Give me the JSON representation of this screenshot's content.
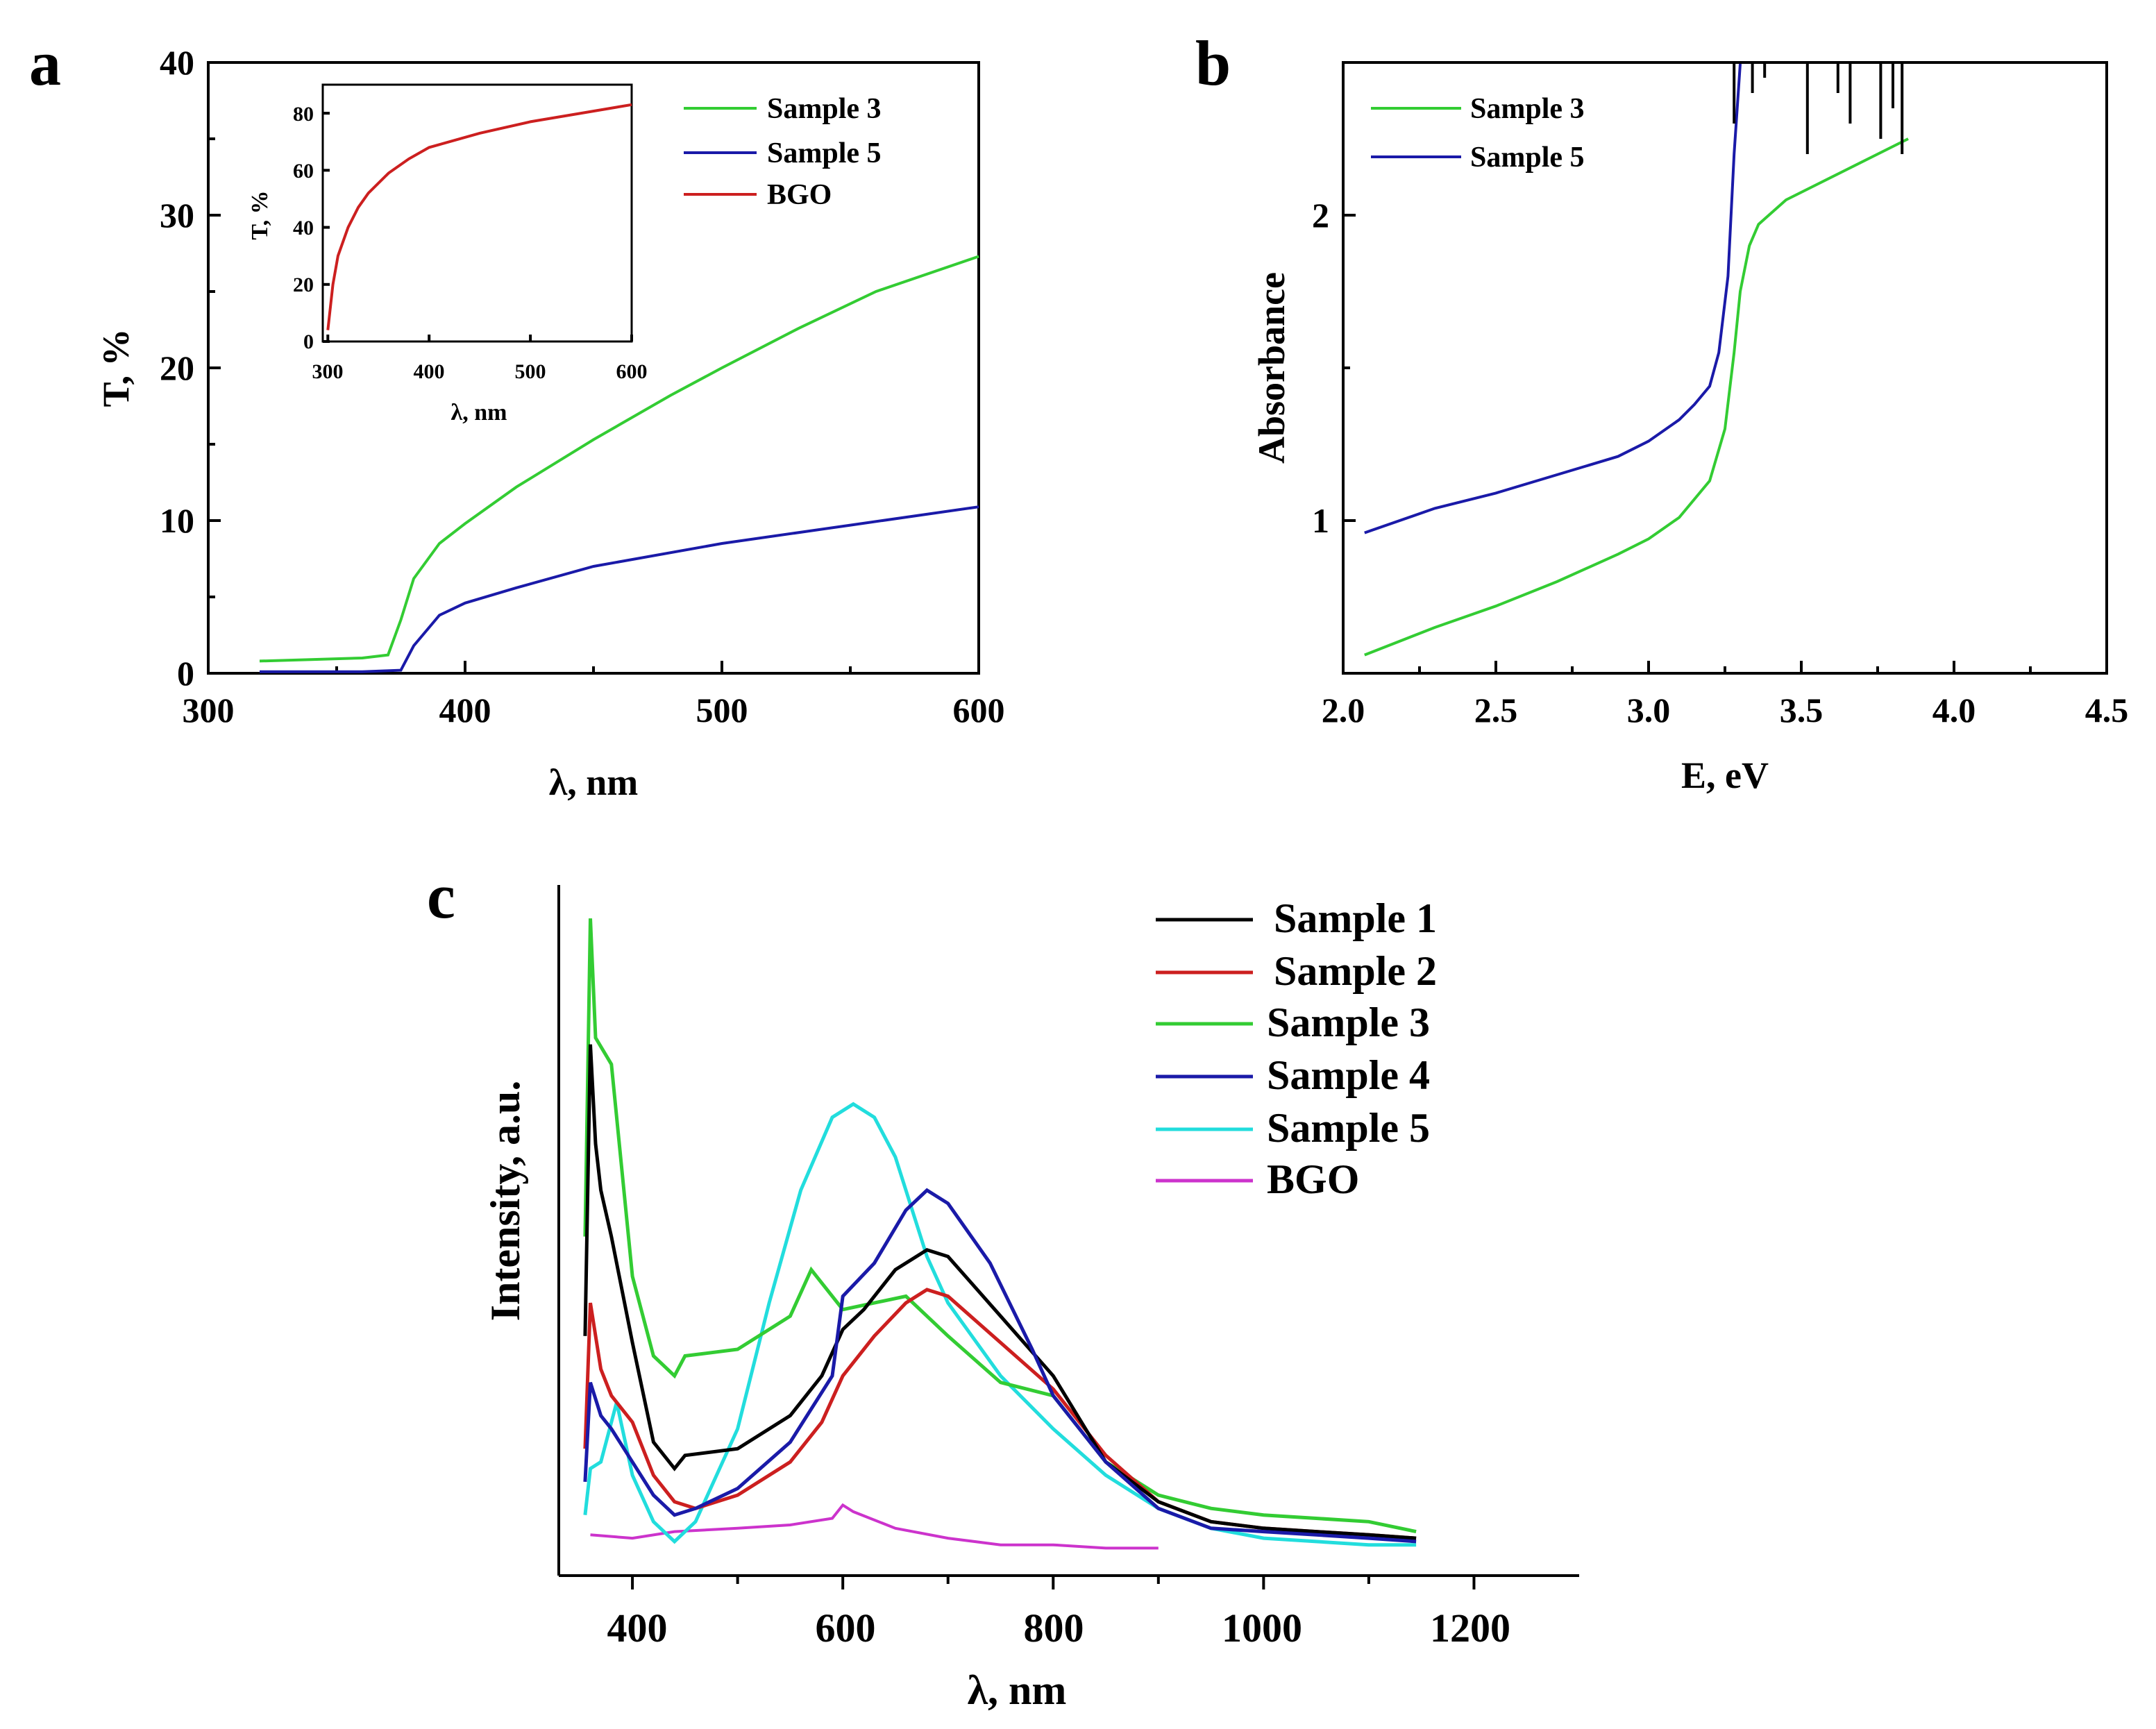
{
  "panels": {
    "a": {
      "letter": "a",
      "xlabel": "λ, nm",
      "ylabel": "T, %",
      "xticks": [
        "300",
        "400",
        "500",
        "600"
      ],
      "yticks": [
        "0",
        "10",
        "20",
        "30",
        "40"
      ],
      "legend": [
        "Sample 3",
        "Sample 5",
        "BGO"
      ],
      "inset": {
        "xlabel": "λ, nm",
        "ylabel": "T, %",
        "xticks": [
          "300",
          "400",
          "500",
          "600"
        ],
        "yticks": [
          "0",
          "20",
          "40",
          "60",
          "80"
        ]
      }
    },
    "b": {
      "letter": "b",
      "xlabel": "E, eV",
      "ylabel": "Absorbance",
      "xticks": [
        "2.0",
        "2.5",
        "3.0",
        "3.5",
        "4.0",
        "4.5"
      ],
      "yticks": [
        "1",
        "2"
      ],
      "legend": [
        "Sample 3",
        "Sample 5"
      ]
    },
    "c": {
      "letter": "c",
      "xlabel": "λ, nm",
      "ylabel": "Intensity, a.u.",
      "xticks": [
        "400",
        "600",
        "800",
        "1000",
        "1200"
      ],
      "legend": [
        "Sample 1",
        "Sample 2",
        "Sample 3",
        "Sample 4",
        "Sample 5",
        "BGO"
      ]
    }
  },
  "colors": {
    "sample1": "#000000",
    "sample2": "#cc1f1f",
    "sample3": "#33cc33",
    "sample4": "#1a1aa8",
    "sample5": "#22dddd",
    "bgo_c": "#cc33cc",
    "bgo_a": "#cc1f1f"
  },
  "chart_data": [
    {
      "type": "line",
      "panel": "a",
      "title": "",
      "xlabel": "λ, nm",
      "ylabel": "T, %",
      "xlim": [
        300,
        600
      ],
      "ylim": [
        0,
        40
      ],
      "series": [
        {
          "name": "Sample 3",
          "color": "#33cc33",
          "x": [
            320,
            340,
            360,
            370,
            375,
            380,
            390,
            400,
            420,
            450,
            480,
            500,
            530,
            560,
            600
          ],
          "y": [
            0.8,
            0.9,
            1.0,
            1.2,
            3.5,
            6.2,
            8.5,
            9.8,
            12.2,
            15.3,
            18.2,
            20.0,
            22.6,
            25.0,
            27.3
          ]
        },
        {
          "name": "Sample 5",
          "color": "#1a1aa8",
          "x": [
            320,
            340,
            360,
            375,
            380,
            390,
            400,
            420,
            450,
            500,
            550,
            600
          ],
          "y": [
            0.1,
            0.1,
            0.1,
            0.2,
            1.8,
            3.8,
            4.6,
            5.6,
            7.0,
            8.5,
            9.7,
            10.9
          ]
        }
      ],
      "inset": {
        "type": "line",
        "xlabel": "λ, nm",
        "ylabel": "T, %",
        "xlim": [
          295,
          600
        ],
        "ylim": [
          0,
          90
        ],
        "series": [
          {
            "name": "BGO",
            "color": "#cc1f1f",
            "x": [
              300,
              305,
              310,
              320,
              330,
              340,
              360,
              380,
              400,
              450,
              500,
              550,
              600
            ],
            "y": [
              4,
              20,
              30,
              40,
              47,
              52,
              59,
              64,
              68,
              73,
              77,
              80,
              83
            ]
          }
        ]
      }
    },
    {
      "type": "line",
      "panel": "b",
      "title": "",
      "xlabel": "E, eV",
      "ylabel": "Absorbance",
      "xlim": [
        2.0,
        4.5
      ],
      "ylim": [
        0.5,
        2.5
      ],
      "series": [
        {
          "name": "Sample 3",
          "color": "#33cc33",
          "x": [
            2.07,
            2.3,
            2.5,
            2.7,
            2.9,
            3.0,
            3.1,
            3.2,
            3.25,
            3.28,
            3.3,
            3.33,
            3.36,
            3.45,
            3.55,
            3.65,
            3.75,
            3.85
          ],
          "y": [
            0.56,
            0.65,
            0.72,
            0.8,
            0.89,
            0.94,
            1.01,
            1.13,
            1.3,
            1.55,
            1.75,
            1.9,
            1.97,
            2.05,
            2.1,
            2.15,
            2.2,
            2.25
          ]
        },
        {
          "name": "Sample 5",
          "color": "#1a1aa8",
          "x": [
            2.07,
            2.3,
            2.5,
            2.7,
            2.9,
            3.0,
            3.1,
            3.15,
            3.2,
            3.23,
            3.26,
            3.28,
            3.3
          ],
          "y": [
            0.96,
            1.04,
            1.09,
            1.15,
            1.21,
            1.26,
            1.33,
            1.38,
            1.44,
            1.55,
            1.8,
            2.2,
            2.5
          ]
        }
      ]
    },
    {
      "type": "line",
      "panel": "c",
      "title": "",
      "xlabel": "λ, nm",
      "ylabel": "Intensity, a.u.",
      "xlim": [
        330,
        1300
      ],
      "ylim": [
        0,
        100
      ],
      "series": [
        {
          "name": "Sample 1",
          "color": "#000000",
          "x": [
            355,
            360,
            365,
            370,
            380,
            400,
            420,
            440,
            450,
            500,
            550,
            580,
            600,
            620,
            650,
            680,
            700,
            750,
            800,
            850,
            900,
            950,
            1000,
            1050,
            1100,
            1145
          ],
          "y": [
            33,
            77,
            62,
            55,
            48,
            32,
            17,
            13,
            15,
            16,
            21,
            27,
            34,
            37,
            43,
            46,
            45,
            36,
            27,
            14,
            8,
            5,
            4,
            3.5,
            3,
            2.5
          ]
        },
        {
          "name": "Sample 2",
          "color": "#cc1f1f",
          "x": [
            355,
            360,
            370,
            380,
            400,
            420,
            440,
            460,
            500,
            550,
            580,
            600,
            630,
            660,
            680,
            700,
            750,
            800,
            850,
            900,
            950,
            1000,
            1050,
            1100,
            1145
          ],
          "y": [
            16,
            38,
            28,
            24,
            20,
            12,
            8,
            7,
            9,
            14,
            20,
            27,
            33,
            38,
            40,
            39,
            32,
            25,
            15,
            8,
            5,
            4,
            3.5,
            3,
            2.5
          ]
        },
        {
          "name": "Sample 3",
          "color": "#33cc33",
          "x": [
            355,
            360,
            365,
            380,
            400,
            420,
            440,
            450,
            500,
            550,
            570,
            600,
            630,
            660,
            700,
            750,
            800,
            850,
            900,
            950,
            1000,
            1050,
            1100,
            1145
          ],
          "y": [
            48,
            96,
            78,
            74,
            42,
            30,
            27,
            30,
            31,
            36,
            43,
            37,
            38,
            39,
            33,
            26,
            24,
            14,
            9,
            7,
            6,
            5.5,
            5,
            3.5
          ]
        },
        {
          "name": "Sample 4",
          "color": "#1a1aa8",
          "x": [
            355,
            360,
            370,
            380,
            400,
            420,
            440,
            460,
            500,
            550,
            590,
            600,
            630,
            660,
            680,
            700,
            740,
            780,
            800,
            850,
            900,
            950,
            1000,
            1050,
            1100,
            1145
          ],
          "y": [
            11,
            26,
            21,
            19,
            14,
            9,
            6,
            7,
            10,
            17,
            27,
            39,
            44,
            52,
            55,
            53,
            44,
            31,
            24,
            14,
            7,
            4,
            3.5,
            3,
            2.5,
            2
          ]
        },
        {
          "name": "Sample 5",
          "color": "#22dddd",
          "x": [
            355,
            360,
            370,
            385,
            400,
            420,
            440,
            460,
            500,
            530,
            560,
            590,
            610,
            630,
            650,
            680,
            700,
            750,
            800,
            850,
            900,
            950,
            1000,
            1050,
            1100,
            1145
          ],
          "y": [
            6,
            13,
            14,
            23,
            12,
            5,
            2,
            5,
            19,
            38,
            55,
            66,
            68,
            66,
            60,
            45,
            38,
            27,
            19,
            12,
            7,
            4,
            2.5,
            2,
            1.5,
            1.5
          ]
        },
        {
          "name": "BGO",
          "color": "#cc33cc",
          "x": [
            360,
            400,
            440,
            500,
            550,
            590,
            600,
            610,
            650,
            700,
            750,
            800,
            850,
            900
          ],
          "y": [
            3,
            2.5,
            3.5,
            4,
            4.5,
            5.5,
            7.5,
            6.5,
            4,
            2.5,
            1.5,
            1.5,
            1,
            1
          ]
        }
      ]
    }
  ]
}
